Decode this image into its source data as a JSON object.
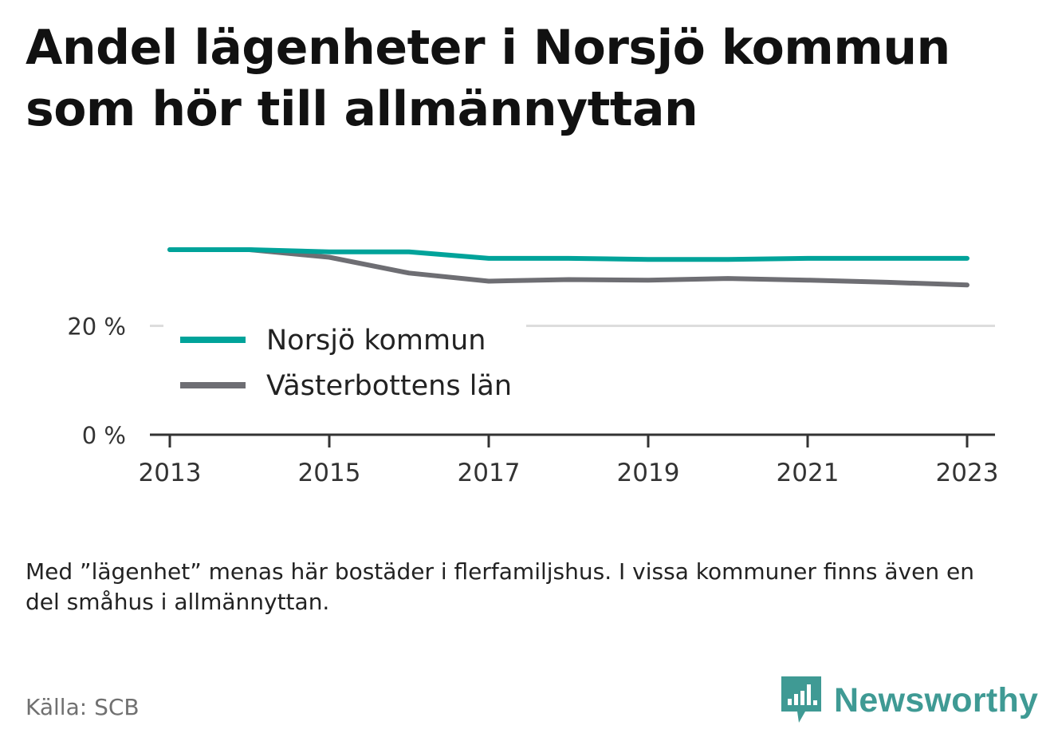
{
  "title": "Andel lägenheter i Norsjö kommun som hör till allmännyttan",
  "note": "Med ”lägenhet” menas här bostäder i flerfamiljshus. I vissa kommuner finns även en del småhus i allmännyttan.",
  "source": "Källa: SCB",
  "brand": {
    "name": "Newsworthy",
    "icon": "newsworthy-logo-icon",
    "color": "#3f9a94"
  },
  "chart_data": {
    "type": "line",
    "x": [
      2013,
      2014,
      2015,
      2016,
      2017,
      2018,
      2019,
      2020,
      2021,
      2022,
      2023
    ],
    "xticks": [
      2013,
      2015,
      2017,
      2019,
      2021,
      2023
    ],
    "xlim": [
      2012.75,
      2023.35
    ],
    "ylim": [
      0,
      40
    ],
    "yticks": [
      {
        "value": 0,
        "label": "0 %"
      },
      {
        "value": 20,
        "label": "20 %"
      }
    ],
    "grid": true,
    "legend_position": "inside-left",
    "series": [
      {
        "name": "Norsjö kommun",
        "color": "#00a39a",
        "values": [
          34.0,
          34.0,
          33.6,
          33.6,
          32.4,
          32.4,
          32.2,
          32.2,
          32.4,
          32.4,
          32.4
        ]
      },
      {
        "name": "Västerbottens län",
        "color": "#6e6e73",
        "values": [
          34.0,
          34.0,
          32.6,
          29.7,
          28.2,
          28.5,
          28.4,
          28.7,
          28.4,
          28.0,
          27.5
        ]
      }
    ]
  }
}
